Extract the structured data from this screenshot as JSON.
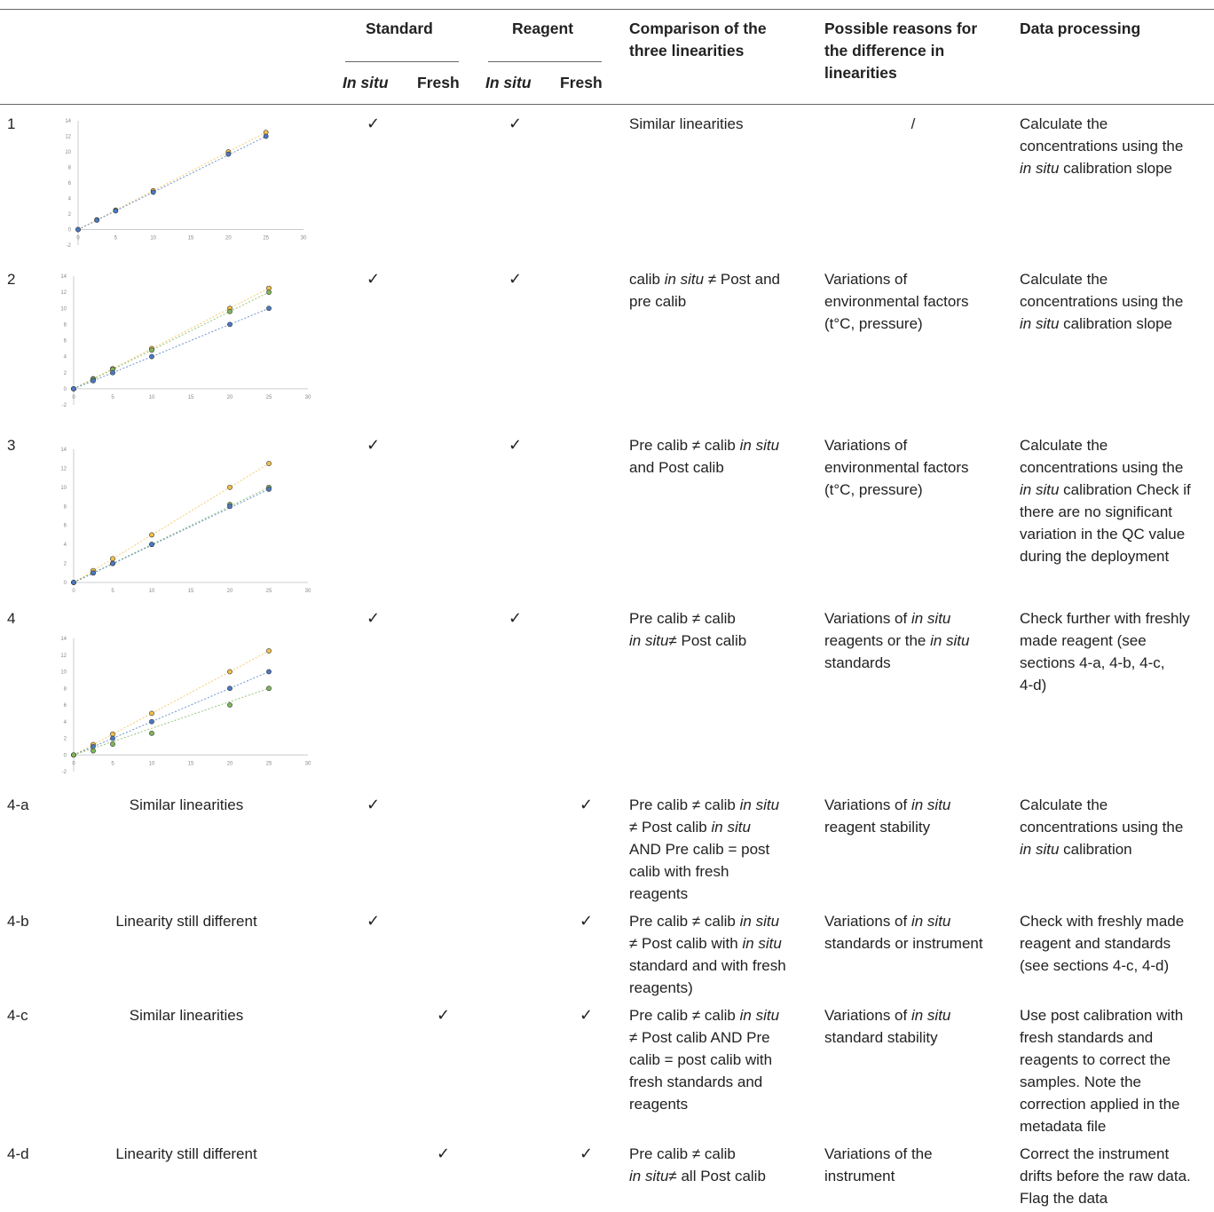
{
  "header": {
    "standard": "Standard",
    "reagent": "Reagent",
    "in_situ": "In situ",
    "fresh": "Fresh",
    "comparison": "Comparison of the three linearities",
    "reasons": "Possible reasons for the difference in linearities",
    "processing": "Data processing"
  },
  "check": "✓",
  "rows": [
    {
      "id": "1",
      "comparison": [
        [
          {
            "t": "Similar linearities"
          }
        ]
      ],
      "reasons": [
        [
          {
            "t": "/"
          }
        ]
      ],
      "processing": [
        [
          {
            "t": "Calculate the"
          }
        ],
        [
          {
            "t": "concentrations using the"
          }
        ],
        [
          {
            "t": "in situ",
            "i": true
          },
          {
            "t": " calibration slope"
          }
        ]
      ]
    },
    {
      "id": "2",
      "comparison": [
        [
          {
            "t": "calib "
          },
          {
            "t": "in situ",
            "i": true
          },
          {
            "t": " ≠ Post and"
          }
        ],
        [
          {
            "t": "pre calib"
          }
        ]
      ],
      "reasons": [
        [
          {
            "t": "Variations of"
          }
        ],
        [
          {
            "t": "environmental factors"
          }
        ],
        [
          {
            "t": "(t°C, pressure)"
          }
        ]
      ],
      "processing": [
        [
          {
            "t": "Calculate the"
          }
        ],
        [
          {
            "t": "concentrations using the"
          }
        ],
        [
          {
            "t": "in situ",
            "i": true
          },
          {
            "t": " calibration slope"
          }
        ]
      ]
    },
    {
      "id": "3",
      "comparison": [
        [
          {
            "t": "Pre calib ≠ calib "
          },
          {
            "t": "in situ",
            "i": true
          }
        ],
        [
          {
            "t": "and Post calib"
          }
        ]
      ],
      "reasons": [
        [
          {
            "t": "Variations of"
          }
        ],
        [
          {
            "t": "environmental factors"
          }
        ],
        [
          {
            "t": "(t°C, pressure)"
          }
        ]
      ],
      "processing": [
        [
          {
            "t": "Calculate the"
          }
        ],
        [
          {
            "t": "concentrations using the"
          }
        ],
        [
          {
            "t": "in situ",
            "i": true
          },
          {
            "t": " calibration Check if"
          }
        ],
        [
          {
            "t": "there are no significant"
          }
        ],
        [
          {
            "t": "variation in the QC value"
          }
        ],
        [
          {
            "t": "during the deployment"
          }
        ]
      ]
    },
    {
      "id": "4",
      "comparison": [
        [
          {
            "t": "Pre calib ≠ calib"
          }
        ],
        [
          {
            "t": "in situ",
            "i": true
          },
          {
            "t": "≠ Post calib"
          }
        ]
      ],
      "reasons": [
        [
          {
            "t": "Variations of "
          },
          {
            "t": "in situ",
            "i": true
          }
        ],
        [
          {
            "t": "reagents or the "
          },
          {
            "t": "in situ",
            "i": true
          }
        ],
        [
          {
            "t": "standards"
          }
        ]
      ],
      "processing": [
        [
          {
            "t": "Check further with freshly"
          }
        ],
        [
          {
            "t": "made reagent (see"
          }
        ],
        [
          {
            "t": "sections 4-a, 4-b, 4-c,"
          }
        ],
        [
          {
            "t": "4-d)"
          }
        ]
      ]
    },
    {
      "id": "4-a",
      "label": "Similar linearities",
      "comparison": [
        [
          {
            "t": "Pre calib ≠ calib "
          },
          {
            "t": "in situ",
            "i": true
          }
        ],
        [
          {
            "t": "≠ Post calib "
          },
          {
            "t": "in situ",
            "i": true
          }
        ],
        [
          {
            "t": "AND Pre calib = post"
          }
        ],
        [
          {
            "t": "calib with fresh"
          }
        ],
        [
          {
            "t": "reagents"
          }
        ]
      ],
      "reasons": [
        [
          {
            "t": "Variations of "
          },
          {
            "t": "in situ",
            "i": true
          }
        ],
        [
          {
            "t": "reagent stability"
          }
        ]
      ],
      "processing": [
        [
          {
            "t": "Calculate the"
          }
        ],
        [
          {
            "t": "concentrations using the"
          }
        ],
        [
          {
            "t": "in situ",
            "i": true
          },
          {
            "t": " calibration"
          }
        ]
      ]
    },
    {
      "id": "4-b",
      "label": "Linearity still different",
      "comparison": [
        [
          {
            "t": "Pre calib ≠ calib "
          },
          {
            "t": "in situ",
            "i": true
          }
        ],
        [
          {
            "t": "≠ Post calib with "
          },
          {
            "t": "in situ",
            "i": true
          }
        ],
        [
          {
            "t": "standard and with fresh"
          }
        ],
        [
          {
            "t": "reagents)"
          }
        ]
      ],
      "reasons": [
        [
          {
            "t": "Variations of "
          },
          {
            "t": "in situ",
            "i": true
          }
        ],
        [
          {
            "t": "standards or instrument"
          }
        ]
      ],
      "processing": [
        [
          {
            "t": "Check with freshly made"
          }
        ],
        [
          {
            "t": "reagent and standards"
          }
        ],
        [
          {
            "t": "(see sections 4-c, 4-d)"
          }
        ]
      ]
    },
    {
      "id": "4-c",
      "label": "Similar linearities",
      "comparison": [
        [
          {
            "t": "Pre calib ≠ calib "
          },
          {
            "t": "in situ",
            "i": true
          }
        ],
        [
          {
            "t": "≠ Post calib AND Pre"
          }
        ],
        [
          {
            "t": "calib = post calib with"
          }
        ],
        [
          {
            "t": "fresh standards and"
          }
        ],
        [
          {
            "t": "reagents"
          }
        ]
      ],
      "reasons": [
        [
          {
            "t": "Variations of "
          },
          {
            "t": "in situ",
            "i": true
          }
        ],
        [
          {
            "t": "standard stability"
          }
        ]
      ],
      "processing": [
        [
          {
            "t": "Use post calibration with"
          }
        ],
        [
          {
            "t": "fresh standards and"
          }
        ],
        [
          {
            "t": "reagents to correct the"
          }
        ],
        [
          {
            "t": "samples. Note the"
          }
        ],
        [
          {
            "t": "correction applied in the"
          }
        ],
        [
          {
            "t": "metadata file"
          }
        ]
      ]
    },
    {
      "id": "4-d",
      "label": "Linearity still different",
      "comparison": [
        [
          {
            "t": "Pre calib ≠ calib"
          }
        ],
        [
          {
            "t": "in situ",
            "i": true
          },
          {
            "t": "≠ all Post calib"
          }
        ]
      ],
      "reasons": [
        [
          {
            "t": "Variations of the"
          }
        ],
        [
          {
            "t": "instrument"
          }
        ]
      ],
      "processing": [
        [
          {
            "t": "Correct the instrument"
          }
        ],
        [
          {
            "t": "drifts before the raw data."
          }
        ],
        [
          {
            "t": "Flag the data"
          }
        ]
      ]
    }
  ],
  "chart_data": [
    {
      "type": "scatter",
      "x_ticks": [
        "0",
        "5",
        "10",
        "15",
        "20",
        "25",
        "30"
      ],
      "y_ticks": [
        "-2",
        "0",
        "2",
        "4",
        "6",
        "8",
        "10",
        "12",
        "14"
      ],
      "xlim": [
        0,
        30
      ],
      "ylim": [
        -2,
        14
      ],
      "series": [
        {
          "color": "#f2c04a",
          "x": [
            0,
            2.5,
            5,
            10,
            20,
            25
          ],
          "y": [
            0,
            1.25,
            2.5,
            5,
            10,
            12.5
          ]
        },
        {
          "color": "#4b79c4",
          "x": [
            0,
            2.5,
            5,
            10,
            20,
            25
          ],
          "y": [
            0,
            1.2,
            2.4,
            4.8,
            9.7,
            12
          ]
        }
      ]
    },
    {
      "type": "scatter",
      "x_ticks": [
        "0",
        "5",
        "10",
        "15",
        "20",
        "25",
        "30"
      ],
      "y_ticks": [
        "-2",
        "0",
        "2",
        "4",
        "6",
        "8",
        "10",
        "12",
        "14"
      ],
      "xlim": [
        0,
        30
      ],
      "ylim": [
        -2,
        14
      ],
      "series": [
        {
          "color": "#f2c04a",
          "x": [
            0,
            2.5,
            5,
            10,
            20,
            25
          ],
          "y": [
            0,
            1.25,
            2.5,
            5,
            10,
            12.5
          ]
        },
        {
          "color": "#7fb65a",
          "x": [
            0,
            2.5,
            5,
            10,
            20,
            25
          ],
          "y": [
            0,
            1.2,
            2.4,
            4.8,
            9.6,
            12
          ]
        },
        {
          "color": "#4b79c4",
          "x": [
            0,
            2.5,
            5,
            10,
            20,
            25
          ],
          "y": [
            0,
            1,
            2,
            4,
            8,
            10
          ]
        }
      ]
    },
    {
      "type": "scatter",
      "x_ticks": [
        "0",
        "5",
        "10",
        "15",
        "20",
        "25",
        "30"
      ],
      "y_ticks": [
        "0",
        "2",
        "4",
        "6",
        "8",
        "10",
        "12",
        "14"
      ],
      "xlim": [
        0,
        30
      ],
      "ylim": [
        0,
        14
      ],
      "series": [
        {
          "color": "#f2c04a",
          "x": [
            0,
            2.5,
            5,
            10,
            20,
            25
          ],
          "y": [
            0,
            1.25,
            2.5,
            5,
            10,
            12.5
          ]
        },
        {
          "color": "#7fb65a",
          "x": [
            0,
            2.5,
            5,
            10,
            20,
            25
          ],
          "y": [
            0,
            1,
            2,
            4,
            8.2,
            10
          ]
        },
        {
          "color": "#4b79c4",
          "x": [
            0,
            2.5,
            5,
            10,
            20,
            25
          ],
          "y": [
            0,
            1,
            2,
            4,
            8,
            9.8
          ]
        }
      ]
    },
    {
      "type": "scatter",
      "x_ticks": [
        "0",
        "5",
        "10",
        "15",
        "20",
        "25",
        "30"
      ],
      "y_ticks": [
        "-2",
        "0",
        "2",
        "4",
        "6",
        "8",
        "10",
        "12",
        "14"
      ],
      "xlim": [
        0,
        30
      ],
      "ylim": [
        -2,
        14
      ],
      "series": [
        {
          "color": "#f2c04a",
          "x": [
            0,
            2.5,
            5,
            10,
            20,
            25
          ],
          "y": [
            0,
            1.25,
            2.5,
            5,
            10,
            12.5
          ]
        },
        {
          "color": "#4b79c4",
          "x": [
            0,
            2.5,
            5,
            10,
            20,
            25
          ],
          "y": [
            0,
            1,
            2,
            4,
            8,
            10
          ]
        },
        {
          "color": "#7fb65a",
          "x": [
            0,
            2.5,
            5,
            10,
            20,
            25
          ],
          "y": [
            0,
            0.5,
            1.3,
            2.6,
            6,
            8
          ]
        }
      ]
    }
  ]
}
